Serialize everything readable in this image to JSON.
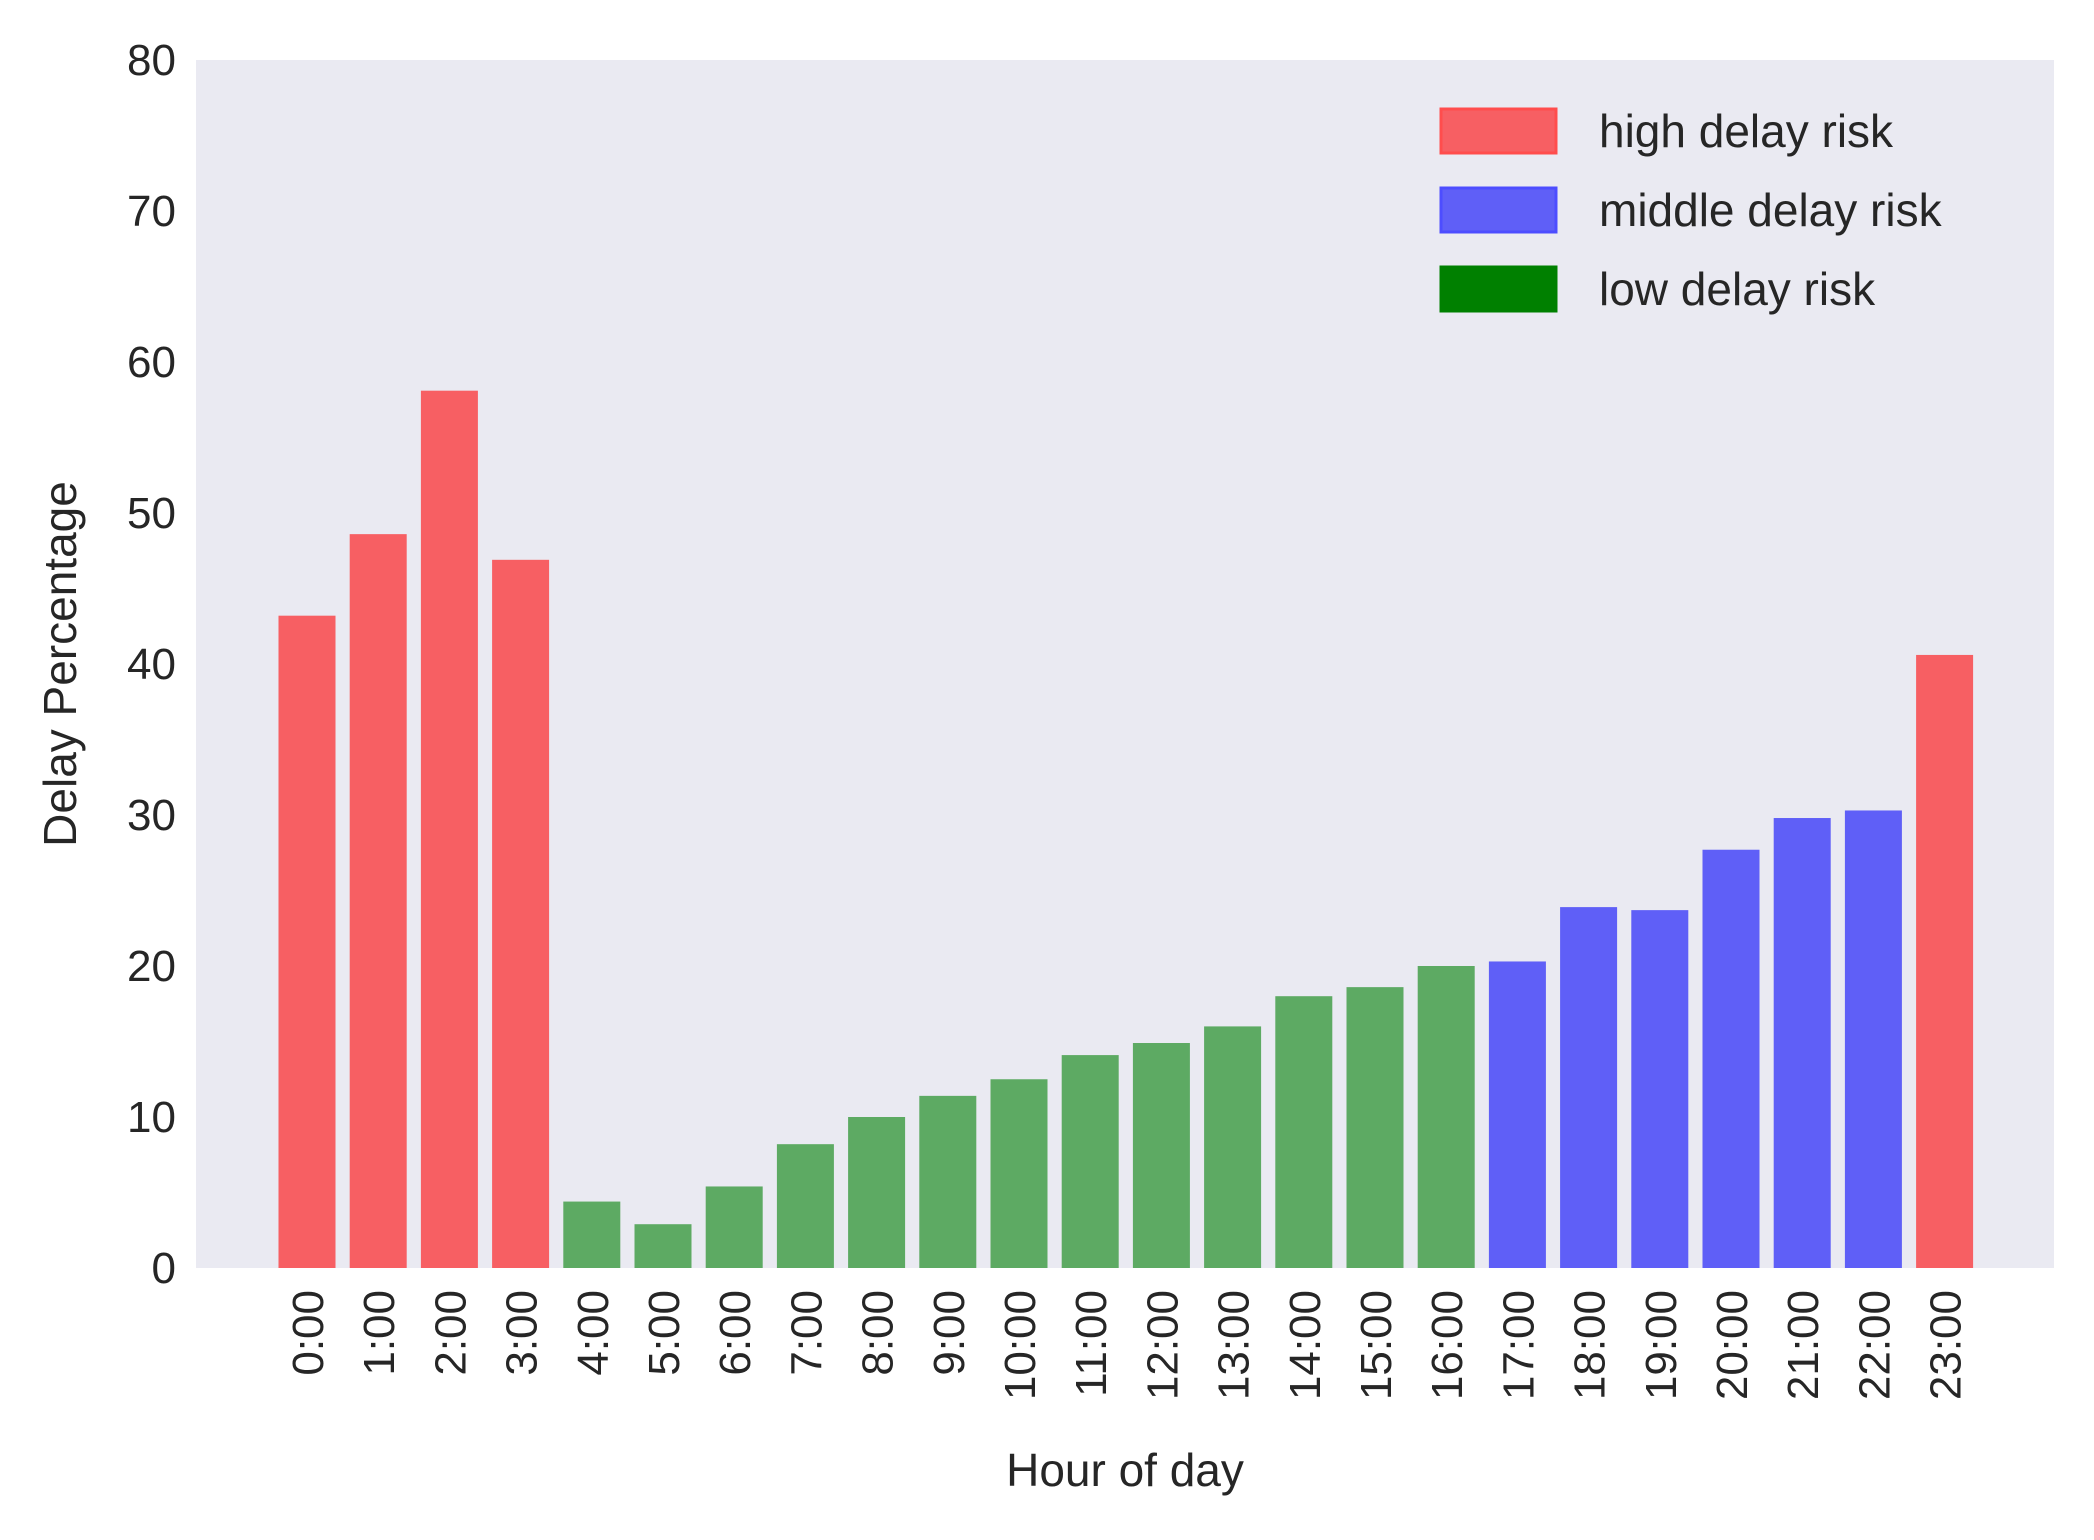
{
  "chart_data": {
    "type": "bar",
    "title": "",
    "xlabel": "Hour of day",
    "ylabel": "Delay Percentage",
    "ylim": [
      0,
      80
    ],
    "yticks": [
      0,
      10,
      20,
      30,
      40,
      50,
      60,
      70,
      80
    ],
    "grid": false,
    "legend_position": "top-right",
    "categories": [
      "0:00",
      "1:00",
      "2:00",
      "3:00",
      "4:00",
      "5:00",
      "6:00",
      "7:00",
      "8:00",
      "9:00",
      "10:00",
      "11:00",
      "12:00",
      "13:00",
      "14:00",
      "15:00",
      "16:00",
      "17:00",
      "18:00",
      "19:00",
      "20:00",
      "21:00",
      "22:00",
      "23:00"
    ],
    "values": [
      43.2,
      48.6,
      58.1,
      46.9,
      4.4,
      2.9,
      5.4,
      8.2,
      10.0,
      11.4,
      12.5,
      14.1,
      14.9,
      16.0,
      18.0,
      18.6,
      20.0,
      20.3,
      23.9,
      23.7,
      27.7,
      29.8,
      30.3,
      40.6
    ],
    "risk": [
      "high",
      "high",
      "high",
      "high",
      "low",
      "low",
      "low",
      "low",
      "low",
      "low",
      "low",
      "low",
      "low",
      "low",
      "low",
      "low",
      "low",
      "middle",
      "middle",
      "middle",
      "middle",
      "middle",
      "middle",
      "high"
    ],
    "colors": {
      "high": "#f75f63",
      "middle": "#5f5ff7",
      "low": "#5daa63"
    },
    "legend": [
      {
        "key": "high",
        "label": "high delay risk",
        "color": "#f75f63",
        "edge": "#ff4d4d"
      },
      {
        "key": "middle",
        "label": "middle delay risk",
        "color": "#5f5ff7",
        "edge": "#4d4dff"
      },
      {
        "key": "low",
        "label": "low delay risk",
        "color": "#008000",
        "edge": "#008000"
      }
    ],
    "plot_background": "#eaeaf2"
  }
}
